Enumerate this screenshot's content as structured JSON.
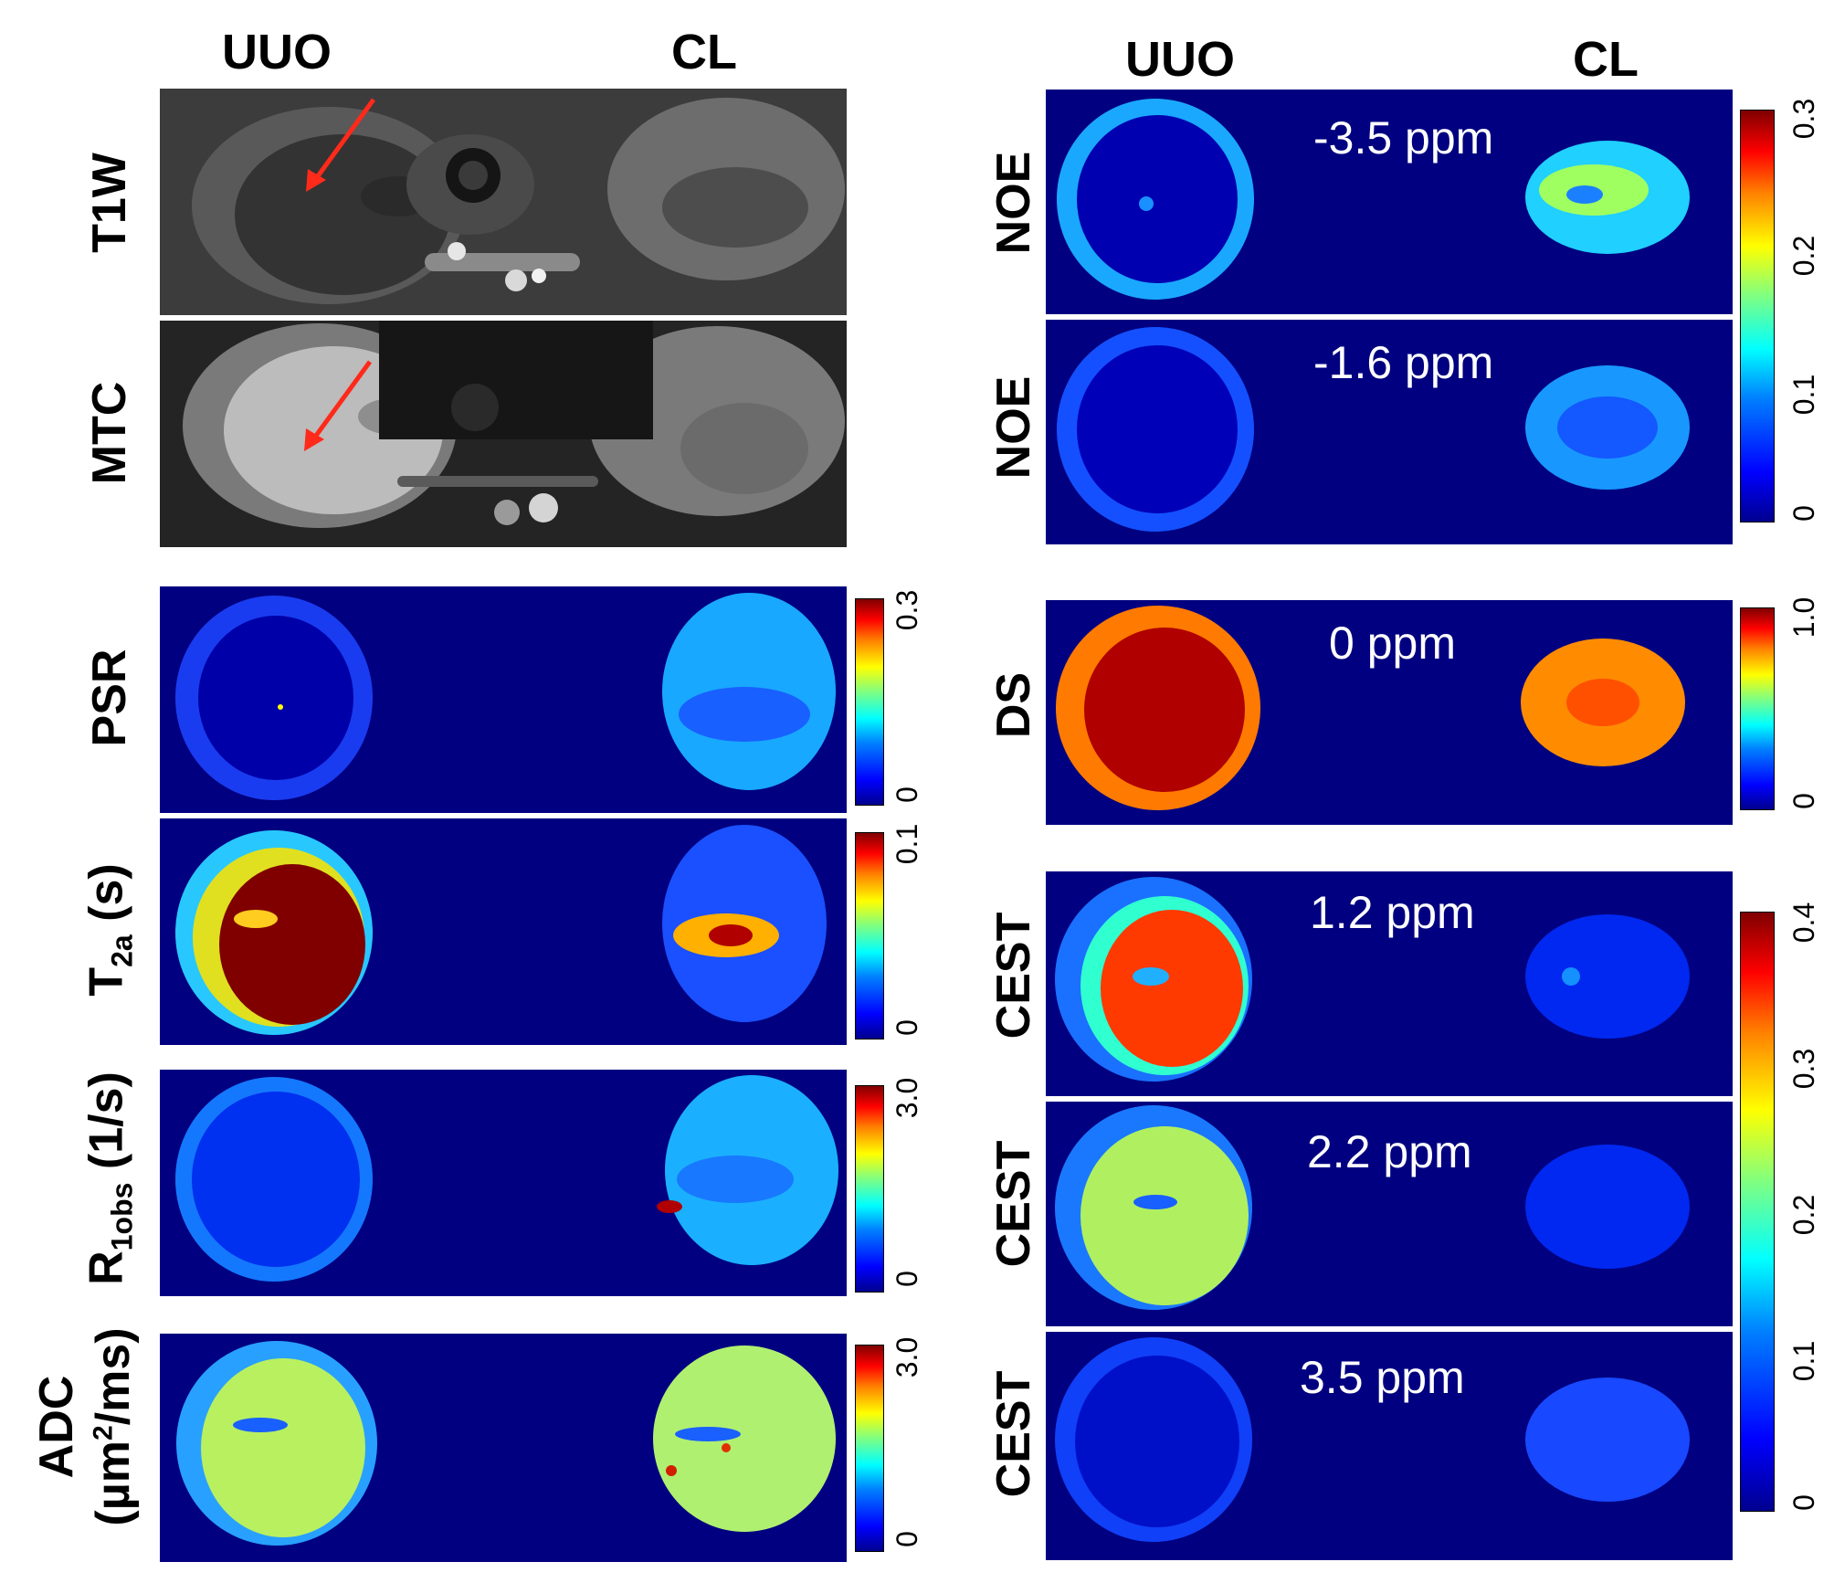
{
  "left": {
    "col_uuo": "UUO",
    "col_cl": "CL",
    "rows": {
      "t1w": "T1W",
      "mtc": "MTC",
      "psr": "PSR",
      "t2a_main": "T",
      "t2a_sub": "2a",
      "t2a_unit": "(s)",
      "r1obs_main": "R",
      "r1obs_sub": "1obs",
      "r1obs_unit": "(1/s)",
      "adc_line1": "ADC",
      "adc_line2_pre": "(µm",
      "adc_line2_sup": "2",
      "adc_line2_post": "/ms)"
    },
    "colorbars": {
      "psr": {
        "min": "0",
        "max": "0.3"
      },
      "t2a": {
        "min": "0",
        "max": "0.1"
      },
      "r1obs": {
        "min": "0",
        "max": "3.0"
      },
      "adc": {
        "min": "0",
        "max": "3.0"
      }
    }
  },
  "right": {
    "col_uuo": "UUO",
    "col_cl": "CL",
    "rows": {
      "noe1": {
        "label": "NOE",
        "ppm": "-3.5 ppm"
      },
      "noe2": {
        "label": "NOE",
        "ppm": "-1.6 ppm"
      },
      "ds": {
        "label": "DS",
        "ppm": "0 ppm"
      },
      "cest1": {
        "label": "CEST",
        "ppm": "1.2 ppm"
      },
      "cest2": {
        "label": "CEST",
        "ppm": "2.2 ppm"
      },
      "cest3": {
        "label": "CEST",
        "ppm": "3.5 ppm"
      }
    },
    "colorbars": {
      "noe": {
        "ticks": [
          "0",
          "0.1",
          "0.2",
          "0.3"
        ]
      },
      "ds": {
        "min": "0",
        "max": "1.0"
      },
      "cest": {
        "ticks": [
          "0",
          "0.1",
          "0.2",
          "0.3",
          "0.4"
        ]
      }
    }
  },
  "colors": {
    "background_map": "#000080",
    "arrow": "#ff2a1a"
  }
}
